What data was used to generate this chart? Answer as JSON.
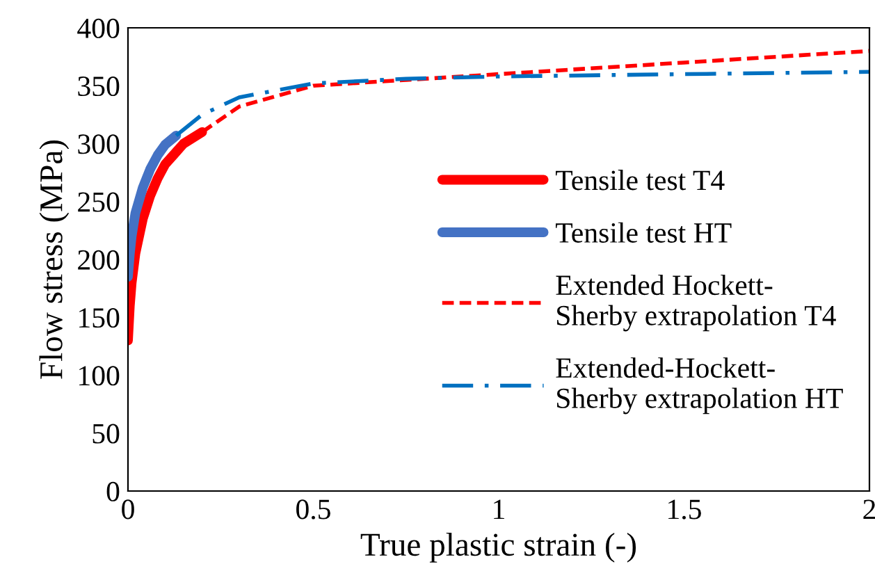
{
  "chart_data": {
    "type": "line",
    "xlabel": "True plastic strain (-)",
    "ylabel": "Flow stress (MPa)",
    "xlim": [
      0,
      2
    ],
    "ylim": [
      0,
      400
    ],
    "xticks": [
      0,
      0.5,
      1,
      1.5,
      2
    ],
    "yticks": [
      0,
      50,
      100,
      150,
      200,
      250,
      300,
      350,
      400
    ],
    "grid": false,
    "legend": "right",
    "marker": "none",
    "series": [
      {
        "name": "Tensile test T4",
        "color": "#ff0000",
        "line_style": "solid",
        "x": [
          0,
          0.005,
          0.01,
          0.02,
          0.04,
          0.06,
          0.08,
          0.1,
          0.15,
          0.2
        ],
        "values": [
          130,
          160,
          180,
          205,
          235,
          255,
          270,
          282,
          300,
          310
        ]
      },
      {
        "name": "Tensile test HT",
        "color": "#4472c4",
        "line_style": "solid",
        "x": [
          0,
          0.005,
          0.01,
          0.02,
          0.04,
          0.06,
          0.08,
          0.1,
          0.13
        ],
        "values": [
          185,
          205,
          220,
          240,
          262,
          278,
          290,
          299,
          307
        ]
      },
      {
        "name": "Extended Hockett-\nSherby extrapolation T4",
        "color": "#ff0000",
        "line_style": "dashed",
        "x": [
          0.2,
          0.3,
          0.5,
          0.75,
          1,
          1.5,
          2
        ],
        "values": [
          310,
          332,
          350,
          355,
          360,
          370,
          380
        ]
      },
      {
        "name": "Extended-Hockett-\nSherby extrapolation HT",
        "color": "#0070c0",
        "line_style": "dashdot",
        "x": [
          0.13,
          0.2,
          0.3,
          0.5,
          0.75,
          1,
          1.5,
          2
        ],
        "values": [
          307,
          325,
          340,
          352,
          356,
          358,
          360,
          362
        ]
      }
    ]
  }
}
